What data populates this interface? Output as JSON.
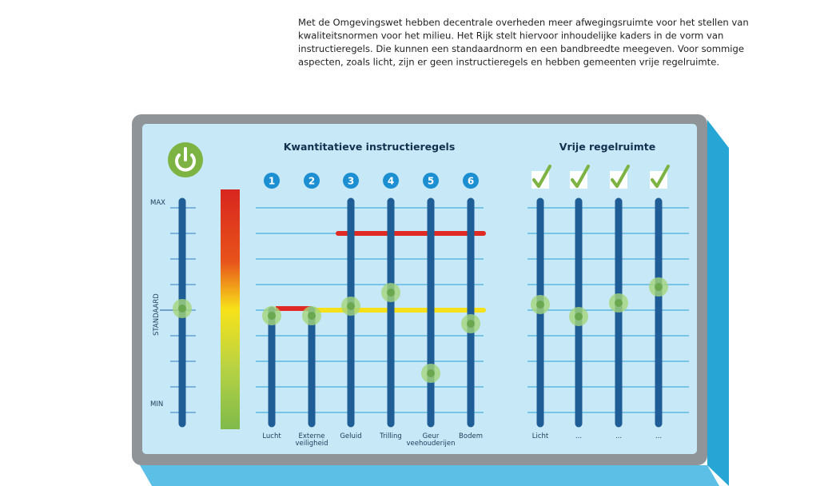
{
  "intro": {
    "lines": [
      "Met de Omgevingswet hebben decentrale overheden meer afwegingsruimte voor het stellen van",
      "kwaliteitsnormen voor het milieu. Het Rijk stelt hiervoor inhoudelijke kaders in de vorm van",
      "instructieregels. Die kunnen een standaardnorm en een bandbreedte meegeven. Voor sommige",
      "aspecten, zoals licht, zijn er geen instructieregels en hebben gemeenten vrije regelruimte."
    ]
  },
  "scale": {
    "max": "MAX",
    "standard": "STANDAARD",
    "min": "MIN"
  },
  "quantitative": {
    "title": "Kwantitatieve instructieregels",
    "items": [
      {
        "number": "1",
        "label": [
          "Lucht"
        ]
      },
      {
        "number": "2",
        "label": [
          "Externe",
          "veiligheid"
        ]
      },
      {
        "number": "3",
        "label": [
          "Geluid"
        ]
      },
      {
        "number": "4",
        "label": [
          "Trilling"
        ]
      },
      {
        "number": "5",
        "label": [
          "Geur",
          "veehouderijen"
        ]
      },
      {
        "number": "6",
        "label": [
          "Bodem"
        ]
      }
    ]
  },
  "free": {
    "title": "Vrije regelruimte",
    "items": [
      {
        "label": "Licht"
      },
      {
        "label": "..."
      },
      {
        "label": "..."
      },
      {
        "label": "..."
      }
    ]
  }
}
